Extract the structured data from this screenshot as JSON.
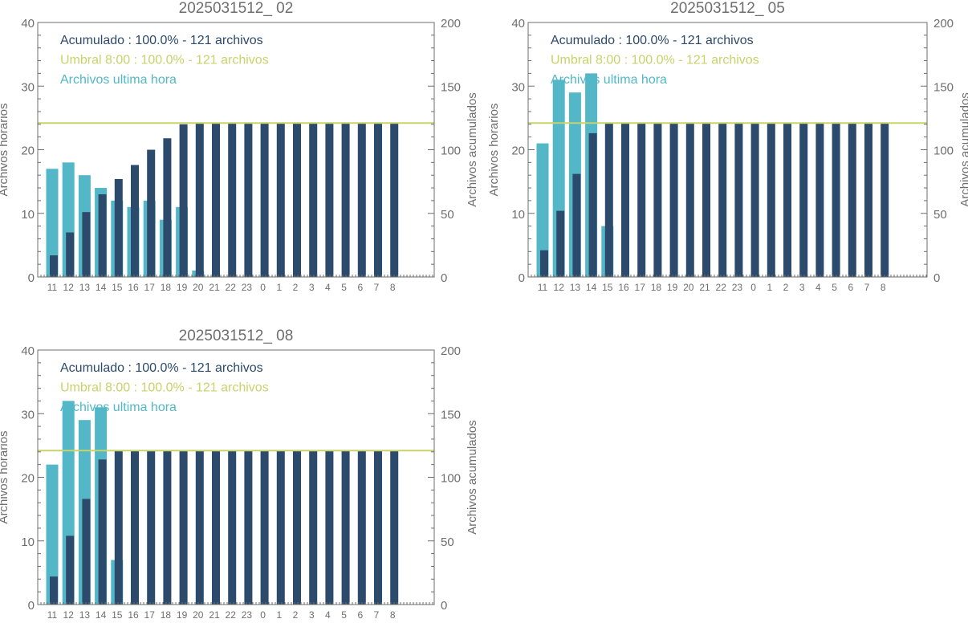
{
  "colors": {
    "hourly": "#53b7c8",
    "accumulated": "#2c4a6b",
    "threshold": "#c8d36a",
    "axis": "#6e6e6e",
    "text": "#6e6e6e"
  },
  "chart_data": [
    {
      "type": "bar",
      "title": "2025031512_ 02",
      "ylabel": "Archivos horarios",
      "ylabel_right": "Archivos acumulados",
      "ylim": [
        0,
        40
      ],
      "ylim_right": [
        0,
        200
      ],
      "yticks": [
        "0",
        "10",
        "20",
        "30",
        "40"
      ],
      "yticks_right": [
        "0",
        "50",
        "100",
        "150",
        "200"
      ],
      "categories": [
        "11",
        "12",
        "13",
        "14",
        "15",
        "16",
        "17",
        "18",
        "19",
        "20",
        "21",
        "22",
        "23",
        "0",
        "1",
        "2",
        "3",
        "4",
        "5",
        "6",
        "7",
        "8"
      ],
      "legend": [
        "Acumulado : 100.0% - 121 archivos",
        "Umbral 8:00 : 100.0% - 121 archivos",
        "Archivos ultima hora"
      ],
      "series": [
        {
          "name": "Archivos ultima hora",
          "axis": "left",
          "values": [
            17,
            18,
            16,
            14,
            12,
            11,
            12,
            9,
            11,
            1,
            0,
            0,
            0,
            0,
            0,
            0,
            0,
            0,
            0,
            0,
            0,
            0
          ]
        },
        {
          "name": "Acumulado",
          "axis": "right",
          "values": [
            17,
            35,
            51,
            65,
            77,
            88,
            100,
            109,
            120,
            121,
            121,
            121,
            121,
            121,
            121,
            121,
            121,
            121,
            121,
            121,
            121,
            121
          ]
        }
      ],
      "threshold": 121
    },
    {
      "type": "bar",
      "title": "2025031512_ 05",
      "ylabel": "Archivos horarios",
      "ylabel_right": "Archivos acumulados",
      "ylim": [
        0,
        40
      ],
      "ylim_right": [
        0,
        200
      ],
      "yticks": [
        "0",
        "10",
        "20",
        "30",
        "40"
      ],
      "yticks_right": [
        "0",
        "50",
        "100",
        "150",
        "200"
      ],
      "categories": [
        "11",
        "12",
        "13",
        "14",
        "15",
        "16",
        "17",
        "18",
        "19",
        "20",
        "21",
        "22",
        "23",
        "0",
        "1",
        "2",
        "3",
        "4",
        "5",
        "6",
        "7",
        "8"
      ],
      "legend": [
        "Acumulado : 100.0% - 121 archivos",
        "Umbral 8:00 : 100.0% - 121 archivos",
        "Archivos ultima hora"
      ],
      "series": [
        {
          "name": "Archivos ultima hora",
          "axis": "left",
          "values": [
            21,
            31,
            29,
            32,
            8,
            0,
            0,
            0,
            0,
            0,
            0,
            0,
            0,
            0,
            0,
            0,
            0,
            0,
            0,
            0,
            0,
            0
          ]
        },
        {
          "name": "Acumulado",
          "axis": "right",
          "values": [
            21,
            52,
            81,
            113,
            121,
            121,
            121,
            121,
            121,
            121,
            121,
            121,
            121,
            121,
            121,
            121,
            121,
            121,
            121,
            121,
            121,
            121
          ]
        }
      ],
      "threshold": 121
    },
    {
      "type": "bar",
      "title": "2025031512_ 08",
      "ylabel": "Archivos horarios",
      "ylabel_right": "Archivos acumulados",
      "ylim": [
        0,
        40
      ],
      "ylim_right": [
        0,
        200
      ],
      "yticks": [
        "0",
        "10",
        "20",
        "30",
        "40"
      ],
      "yticks_right": [
        "0",
        "50",
        "100",
        "150",
        "200"
      ],
      "categories": [
        "11",
        "12",
        "13",
        "14",
        "15",
        "16",
        "17",
        "18",
        "19",
        "20",
        "21",
        "22",
        "23",
        "0",
        "1",
        "2",
        "3",
        "4",
        "5",
        "6",
        "7",
        "8"
      ],
      "legend": [
        "Acumulado : 100.0% - 121 archivos",
        "Umbral 8:00 : 100.0% - 121 archivos",
        "Archivos ultima hora"
      ],
      "series": [
        {
          "name": "Archivos ultima hora",
          "axis": "left",
          "values": [
            22,
            32,
            29,
            31,
            7,
            0,
            0,
            0,
            0,
            0,
            0,
            0,
            0,
            0,
            0,
            0,
            0,
            0,
            0,
            0,
            0,
            0
          ]
        },
        {
          "name": "Acumulado",
          "axis": "right",
          "values": [
            22,
            54,
            83,
            114,
            121,
            121,
            121,
            121,
            121,
            121,
            121,
            121,
            121,
            121,
            121,
            121,
            121,
            121,
            121,
            121,
            121,
            121
          ]
        }
      ],
      "threshold": 121
    }
  ]
}
